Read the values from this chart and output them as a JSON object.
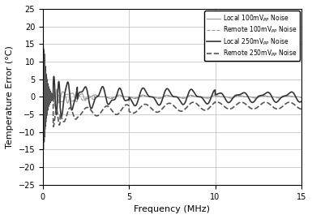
{
  "title": "",
  "xlabel": "Frequency (MHz)",
  "ylabel": "Temperature Error (°C)",
  "xlim": [
    0,
    15
  ],
  "ylim": [
    -25,
    25
  ],
  "xticks": [
    0,
    5,
    10,
    15
  ],
  "yticks": [
    -25,
    -20,
    -15,
    -10,
    -5,
    0,
    5,
    10,
    15,
    20,
    25
  ],
  "legend": [
    {
      "label": "Local 100mV$_{PP}$ Noise",
      "ls": "-",
      "lw": 0.8,
      "color": "#999999"
    },
    {
      "label": "Remote 100mV$_{PP}$ Noise",
      "ls": "--",
      "lw": 0.8,
      "color": "#999999"
    },
    {
      "label": "Local 250mV$_{PP}$ Noise",
      "ls": "-",
      "lw": 1.2,
      "color": "#333333"
    },
    {
      "label": "Remote 250mV$_{PP}$ Noise",
      "ls": "--",
      "lw": 1.2,
      "color": "#555555"
    }
  ],
  "grid": true,
  "background": "#ffffff"
}
